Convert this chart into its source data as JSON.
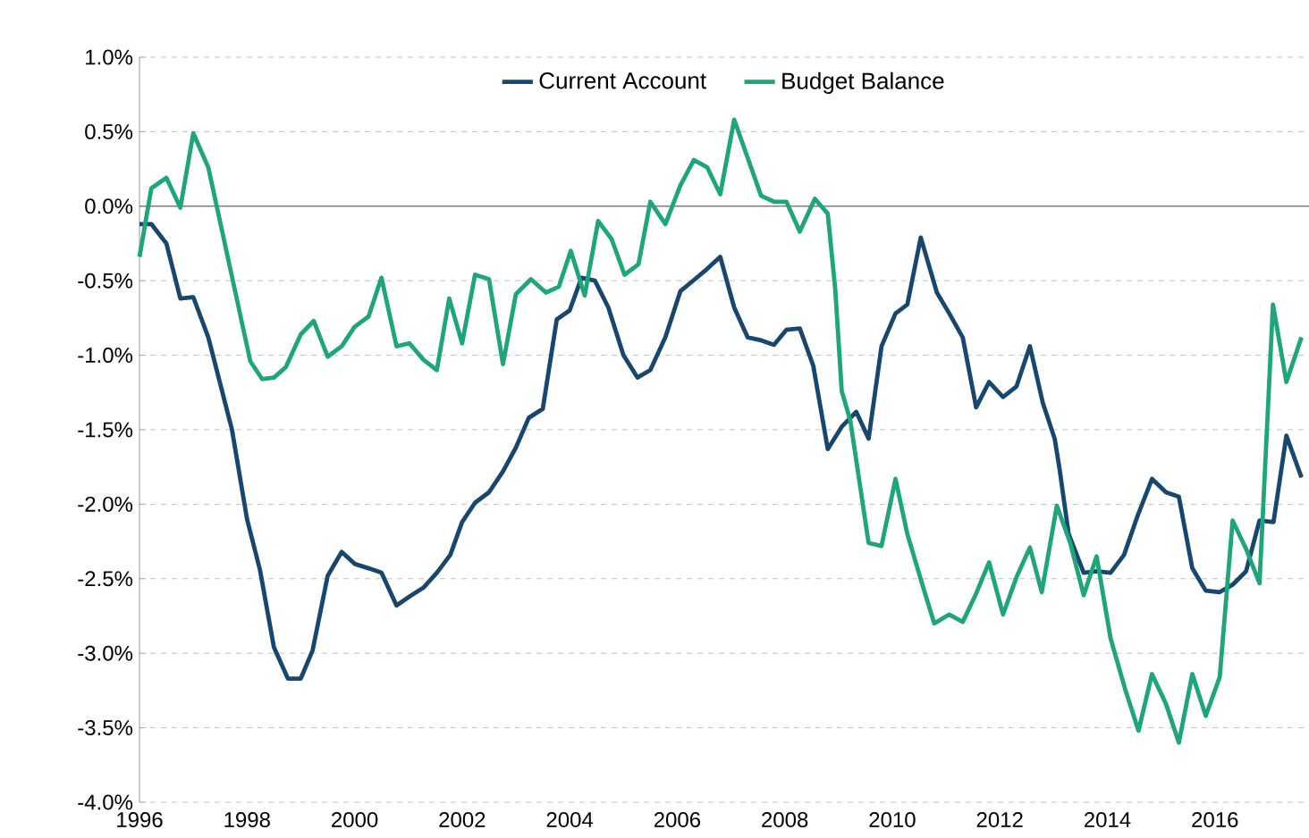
{
  "chart_data": {
    "type": "line",
    "legend": "top",
    "grid": "y",
    "line_style": "solid",
    "xlim": [
      1996,
      2017.75
    ],
    "xticks": [
      1996,
      1998,
      2000,
      2002,
      2004,
      2006,
      2008,
      2010,
      2012,
      2014,
      2016
    ],
    "ylim": [
      -4.0,
      1.0
    ],
    "yticks": [
      {
        "value": -4.0,
        "label": "-4.0%"
      },
      {
        "value": -3.5,
        "label": "-3.5%"
      },
      {
        "value": -3.0,
        "label": "-3.0%"
      },
      {
        "value": -2.5,
        "label": "-2.5%"
      },
      {
        "value": -2.0,
        "label": "-2.0%"
      },
      {
        "value": -1.5,
        "label": "-1.5%"
      },
      {
        "value": -1.0,
        "label": "-1.0%"
      },
      {
        "value": -0.5,
        "label": "-0.5%"
      },
      {
        "value": 0.0,
        "label": "0.0%"
      },
      {
        "value": 0.5,
        "label": "0.5%"
      },
      {
        "value": 1.0,
        "label": "1.0%"
      }
    ],
    "ref_lines": [
      {
        "axis": "y",
        "value": 0,
        "color": "#808080"
      }
    ],
    "series": [
      {
        "name": "Current Account",
        "color": "#17476e",
        "x": [
          1996.0,
          1996.22,
          1996.5,
          1996.76,
          1997.0,
          1997.28,
          1997.72,
          1998.0,
          1998.24,
          1998.5,
          1998.76,
          1999.0,
          1999.22,
          1999.5,
          1999.76,
          2000.0,
          2000.26,
          2000.5,
          2000.78,
          2001.02,
          2001.28,
          2001.53,
          2001.78,
          2002.0,
          2002.24,
          2002.5,
          2002.76,
          2003.0,
          2003.24,
          2003.5,
          2003.76,
          2004.0,
          2004.22,
          2004.47,
          2004.72,
          2005.0,
          2005.26,
          2005.5,
          2005.78,
          2006.06,
          2006.33,
          2006.56,
          2006.8,
          2007.06,
          2007.31,
          2007.56,
          2007.8,
          2008.03,
          2008.28,
          2008.53,
          2008.8,
          2009.06,
          2009.33,
          2009.56,
          2009.8,
          2010.06,
          2010.28,
          2010.53,
          2010.83,
          2011.06,
          2011.31,
          2011.56,
          2011.8,
          2012.06,
          2012.31,
          2012.56,
          2012.8,
          2013.02,
          2013.11,
          2013.28,
          2013.56,
          2013.8,
          2014.06,
          2014.31,
          2014.56,
          2014.83,
          2015.09,
          2015.33,
          2015.58,
          2015.83,
          2016.09,
          2016.33,
          2016.58,
          2016.83,
          2017.09,
          2017.33,
          2017.61
        ],
        "values": [
          -0.12,
          -0.12,
          -0.25,
          -0.62,
          -0.61,
          -0.88,
          -1.5,
          -2.1,
          -2.44,
          -2.96,
          -3.17,
          -3.17,
          -2.98,
          -2.48,
          -2.32,
          -2.4,
          -2.43,
          -2.46,
          -2.68,
          -2.62,
          -2.56,
          -2.46,
          -2.34,
          -2.12,
          -1.99,
          -1.92,
          -1.78,
          -1.62,
          -1.42,
          -1.36,
          -0.76,
          -0.7,
          -0.48,
          -0.5,
          -0.68,
          -1.0,
          -1.15,
          -1.1,
          -0.88,
          -0.57,
          -0.49,
          -0.42,
          -0.34,
          -0.68,
          -0.88,
          -0.9,
          -0.93,
          -0.83,
          -0.82,
          -1.07,
          -1.63,
          -1.48,
          -1.38,
          -1.56,
          -0.94,
          -0.72,
          -0.66,
          -0.21,
          -0.58,
          -0.72,
          -0.88,
          -1.35,
          -1.18,
          -1.28,
          -1.21,
          -0.94,
          -1.32,
          -1.56,
          -1.76,
          -2.2,
          -2.46,
          -2.45,
          -2.46,
          -2.34,
          -2.08,
          -1.83,
          -1.92,
          -1.95,
          -2.43,
          -2.58,
          -2.59,
          -2.54,
          -2.45,
          -2.11,
          -2.12,
          -1.54,
          -1.82
        ]
      },
      {
        "name": "Budget Balance",
        "color": "#1ea67a",
        "x": [
          1996.0,
          1996.22,
          1996.5,
          1996.76,
          1997.0,
          1997.28,
          1998.06,
          1998.28,
          1998.5,
          1998.72,
          1999.0,
          1999.24,
          1999.5,
          1999.76,
          2000.0,
          2000.26,
          2000.5,
          2000.78,
          2001.02,
          2001.28,
          2001.53,
          2001.76,
          2002.0,
          2002.24,
          2002.5,
          2002.76,
          2003.0,
          2003.28,
          2003.56,
          2003.8,
          2004.02,
          2004.28,
          2004.53,
          2004.78,
          2005.02,
          2005.28,
          2005.5,
          2005.78,
          2006.06,
          2006.31,
          2006.56,
          2006.8,
          2007.06,
          2007.56,
          2007.8,
          2008.03,
          2008.28,
          2008.56,
          2008.8,
          2008.94,
          2009.06,
          2009.22,
          2009.56,
          2009.8,
          2010.06,
          2010.28,
          2010.56,
          2010.78,
          2011.06,
          2011.31,
          2011.56,
          2011.8,
          2012.06,
          2012.31,
          2012.56,
          2012.78,
          2013.06,
          2013.31,
          2013.56,
          2013.8,
          2014.06,
          2014.33,
          2014.58,
          2014.83,
          2015.09,
          2015.33,
          2015.58,
          2015.83,
          2016.09,
          2016.33,
          2016.58,
          2016.83,
          2017.08,
          2017.33,
          2017.61
        ],
        "values": [
          -0.34,
          0.12,
          0.19,
          -0.01,
          0.49,
          0.26,
          -1.04,
          -1.16,
          -1.15,
          -1.08,
          -0.86,
          -0.77,
          -1.01,
          -0.94,
          -0.81,
          -0.74,
          -0.48,
          -0.94,
          -0.92,
          -1.03,
          -1.1,
          -0.62,
          -0.92,
          -0.46,
          -0.49,
          -1.06,
          -0.59,
          -0.49,
          -0.58,
          -0.54,
          -0.3,
          -0.6,
          -0.1,
          -0.22,
          -0.46,
          -0.39,
          0.03,
          -0.12,
          0.14,
          0.31,
          0.26,
          0.08,
          0.58,
          0.07,
          0.03,
          0.03,
          -0.17,
          0.05,
          -0.05,
          -0.56,
          -1.24,
          -1.44,
          -2.26,
          -2.28,
          -1.83,
          -2.2,
          -2.54,
          -2.8,
          -2.74,
          -2.79,
          -2.6,
          -2.39,
          -2.74,
          -2.49,
          -2.29,
          -2.59,
          -2.01,
          -2.26,
          -2.61,
          -2.35,
          -2.9,
          -3.24,
          -3.52,
          -3.14,
          -3.34,
          -3.6,
          -3.14,
          -3.42,
          -3.16,
          -2.11,
          -2.3,
          -2.53,
          -0.66,
          -1.18,
          -0.88
        ]
      }
    ]
  }
}
